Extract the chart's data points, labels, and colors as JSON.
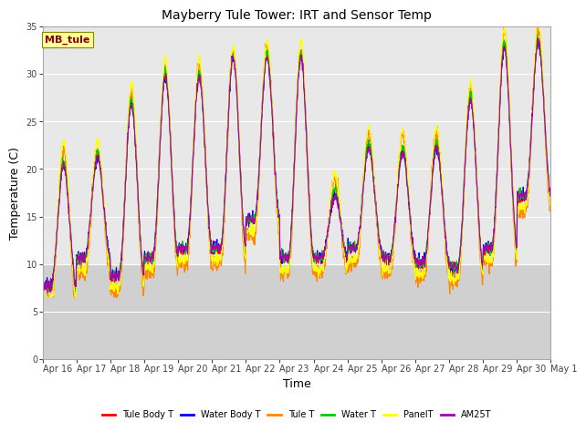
{
  "title": "Mayberry Tule Tower: IRT and Sensor Temp",
  "xlabel": "Time",
  "ylabel": "Temperature (C)",
  "ylim": [
    0,
    35
  ],
  "yticks": [
    0,
    5,
    10,
    15,
    20,
    25,
    30,
    35
  ],
  "plot_bg_color": "#d8d8d8",
  "upper_band_color": "#e8e8e8",
  "lower_band_color": "#d0d0d0",
  "series": [
    {
      "name": "Tule Body T",
      "color": "#ff0000"
    },
    {
      "name": "Water Body T",
      "color": "#0000ff"
    },
    {
      "name": "Tule T",
      "color": "#ff8800"
    },
    {
      "name": "Water T",
      "color": "#00cc00"
    },
    {
      "name": "PanelT",
      "color": "#ffff00"
    },
    {
      "name": "AM25T",
      "color": "#aa00aa"
    }
  ],
  "watermark": "MB_tule",
  "watermark_bg": "#ffff99",
  "watermark_fg": "#880000",
  "x_tick_labels": [
    "Apr 16",
    "Apr 17",
    "Apr 18",
    "Apr 19",
    "Apr 20",
    "Apr 21",
    "Apr 22",
    "Apr 23",
    "Apr 24",
    "Apr 25",
    "Apr 26",
    "Apr 27",
    "Apr 28",
    "Apr 29",
    "Apr 30",
    "May 1"
  ],
  "num_days": 15,
  "points_per_day": 96
}
